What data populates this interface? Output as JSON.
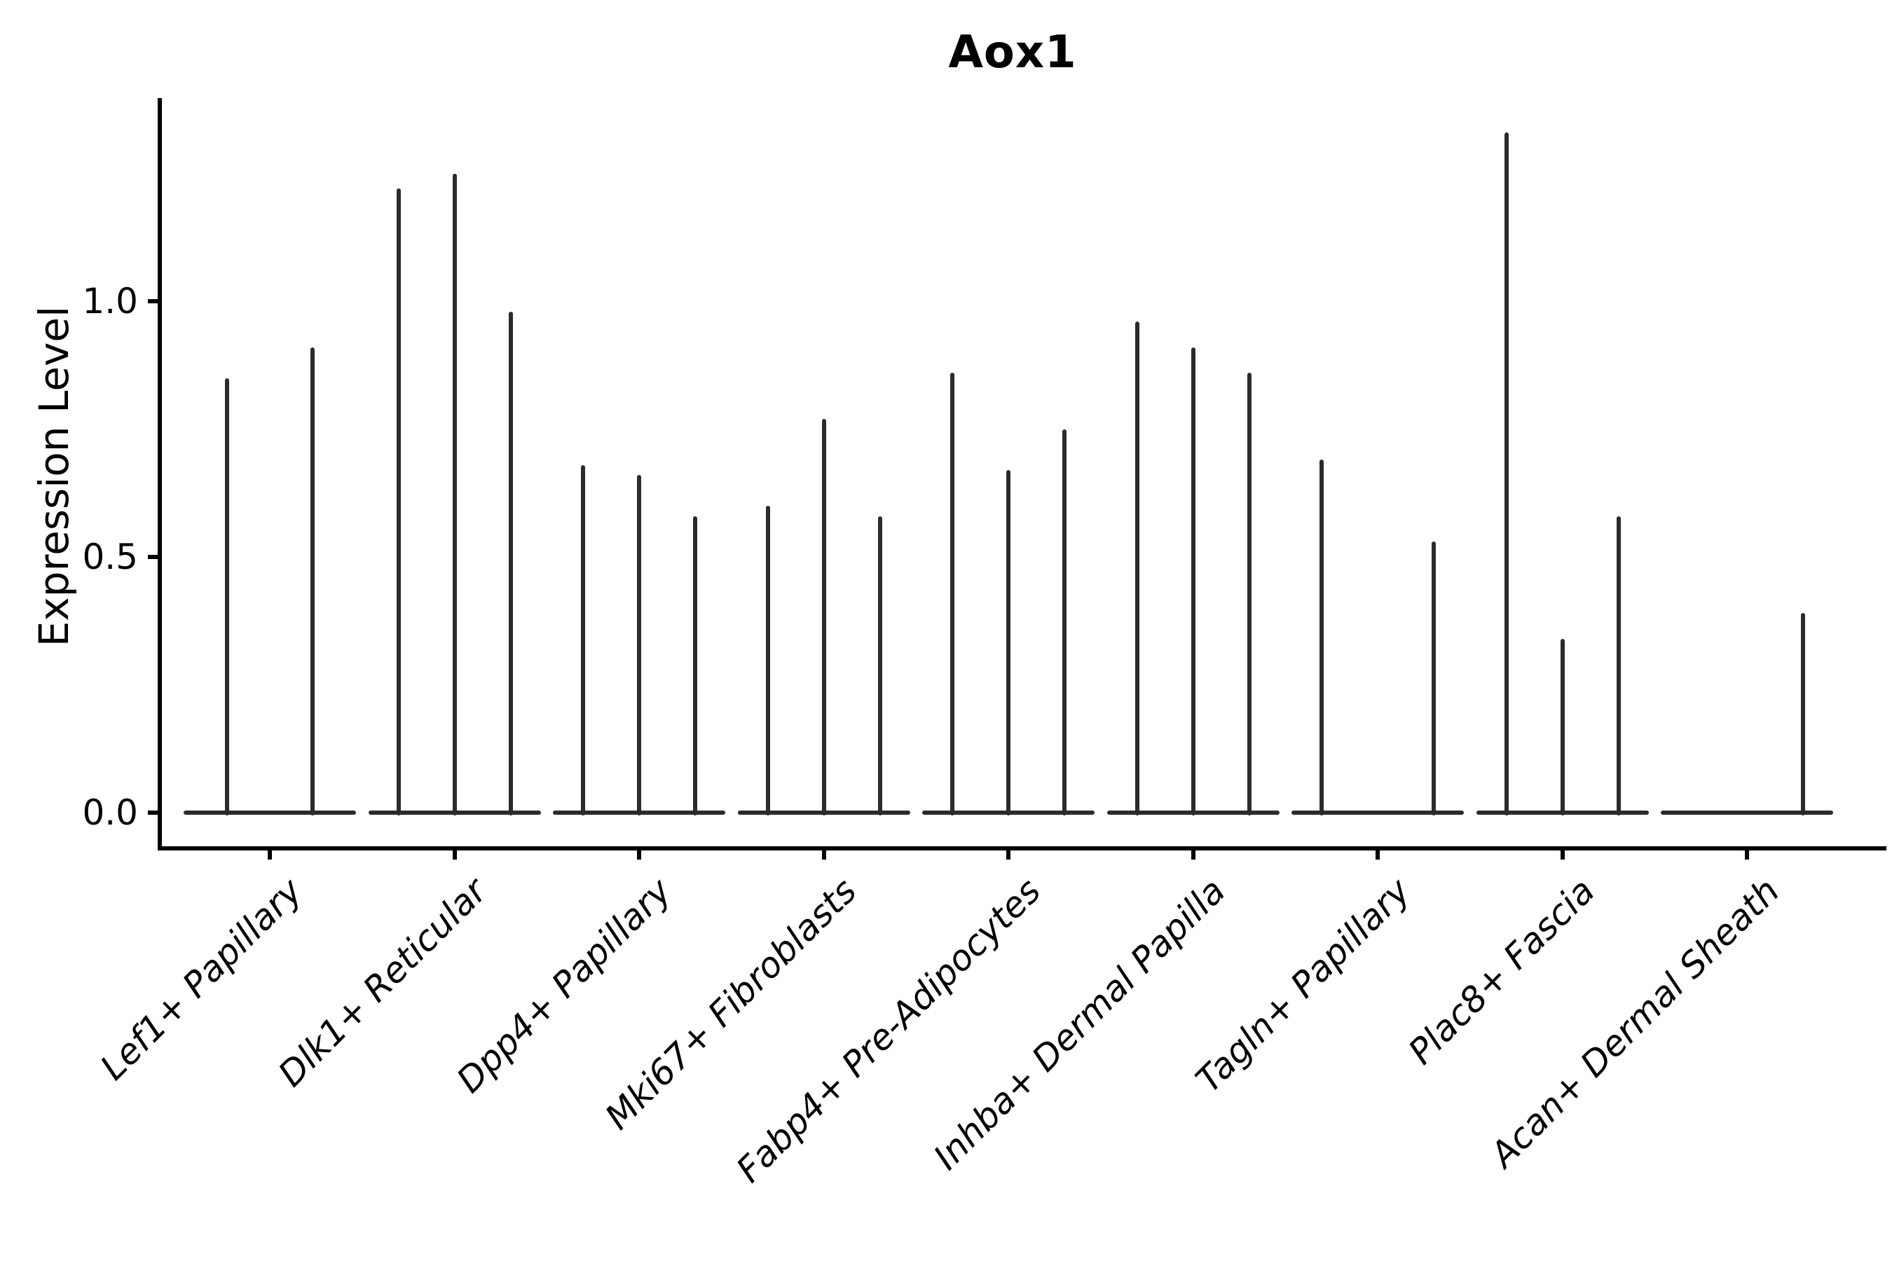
{
  "title": "Aox1",
  "y_axis": {
    "label": "Expression Level",
    "tick_labels": [
      "0.0",
      "0.5",
      "1.0"
    ]
  },
  "colors": {
    "violin": "#2b2b2b",
    "axis": "#000000",
    "text": "#000000",
    "background": "#ffffff"
  },
  "chart_data": {
    "type": "violin",
    "title": "Aox1",
    "xlabel": "",
    "ylabel": "Expression Level",
    "ylim": [
      -0.07,
      1.4
    ],
    "yticks": [
      0.0,
      0.5,
      1.0
    ],
    "ytick_labels": [
      "0.0",
      "0.5",
      "1.0"
    ],
    "grid": false,
    "legend": "none",
    "baseline_value": 0.0,
    "categories": [
      "Lef1+ Papillary",
      "Dlk1+ Reticular",
      "Dpp4+ Papillary",
      "Mki67+ Fibroblasts",
      "Fabp4+ Pre-Adipocytes",
      "Inhba+ Dermal Papilla",
      "Tagln+ Papillary",
      "Plac8+ Fascia",
      "Acan+ Dermal Sheath"
    ],
    "groups": [
      {
        "category": "Lef1+ Papillary",
        "violin_max_values": [
          0.85,
          0.91
        ]
      },
      {
        "category": "Dlk1+ Reticular",
        "violin_max_values": [
          1.22,
          1.25,
          0.98
        ]
      },
      {
        "category": "Dpp4+ Papillary",
        "violin_max_values": [
          0.68,
          0.66,
          0.58
        ]
      },
      {
        "category": "Mki67+ Fibroblasts",
        "violin_max_values": [
          0.6,
          0.77,
          0.58
        ]
      },
      {
        "category": "Fabp4+ Pre-Adipocytes",
        "violin_max_values": [
          0.86,
          0.67,
          0.75
        ]
      },
      {
        "category": "Inhba+ Dermal Papilla",
        "violin_max_values": [
          0.96,
          0.91,
          0.86
        ]
      },
      {
        "category": "Tagln+ Papillary",
        "violin_max_values": [
          0.69,
          0.0,
          0.53
        ]
      },
      {
        "category": "Plac8+ Fascia",
        "violin_max_values": [
          1.33,
          0.34,
          0.58
        ]
      },
      {
        "category": "Acan+ Dermal Sheath",
        "violin_max_values": [
          0.0,
          0.0,
          0.39
        ]
      }
    ]
  }
}
